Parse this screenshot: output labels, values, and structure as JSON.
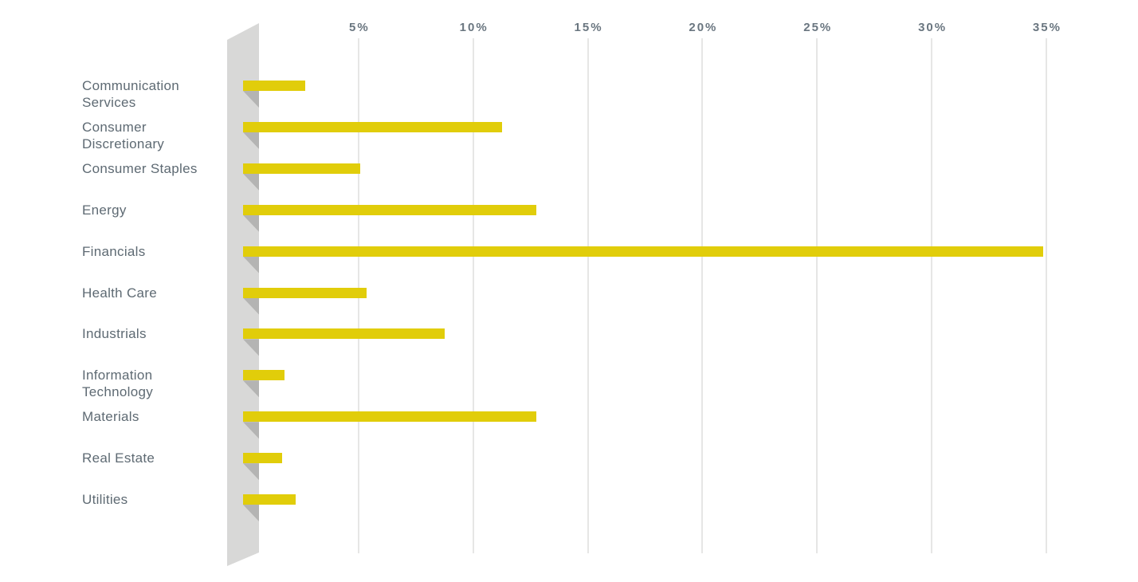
{
  "chart_data": {
    "type": "bar",
    "orientation": "horizontal",
    "title": "",
    "xlabel": "",
    "ylabel": "",
    "categories": [
      "Communication Services",
      "Consumer Discretionary",
      "Consumer Staples",
      "Energy",
      "Financials",
      "Health Care",
      "Industrials",
      "Information Technology",
      "Materials",
      "Real Estate",
      "Utilities"
    ],
    "category_display": [
      "Communication\nServices",
      "Consumer\nDiscretionary",
      "Consumer Staples",
      "Energy",
      "Financials",
      "Health Care",
      "Industrials",
      "Information\nTechnology",
      "Materials",
      "Real Estate",
      "Utilities"
    ],
    "values": [
      2.7,
      11.3,
      5.1,
      12.8,
      34.9,
      5.4,
      8.8,
      1.8,
      12.8,
      1.7,
      2.3
    ],
    "unit": "%",
    "x_ticks": [
      {
        "label": "5%",
        "value": 5
      },
      {
        "label": "10%",
        "value": 10
      },
      {
        "label": "15%",
        "value": 15
      },
      {
        "label": "20%",
        "value": 20
      },
      {
        "label": "25%",
        "value": 25
      },
      {
        "label": "30%",
        "value": 30
      },
      {
        "label": "35%",
        "value": 35
      }
    ],
    "xlim": [
      0,
      35
    ],
    "grid": true,
    "legend": "none",
    "style": "3d-wall-horizontal-bars",
    "colors": {
      "bar": "#e1cd0a",
      "wall": "#d8d8d7",
      "wall_shadow": "#b4b4b3",
      "gridline": "#e6e6e5",
      "tick_text": "#6a7680",
      "label_text": "#5e6a73",
      "background": "#ffffff"
    }
  }
}
